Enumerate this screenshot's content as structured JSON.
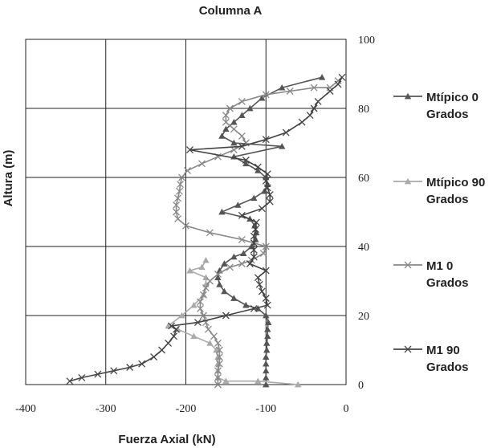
{
  "chart_data": {
    "type": "line",
    "title": "Columna A",
    "xlabel": "Fuerza Axial (kN)",
    "ylabel": "Altura (m)",
    "xlim": [
      -400,
      0
    ],
    "ylim": [
      0,
      100
    ],
    "xticks": [
      "-400",
      "-300",
      "-200",
      "-100",
      "0"
    ],
    "yticks": [
      "0",
      "20",
      "40",
      "60",
      "80",
      "100"
    ],
    "grid": "vertical and horizontal",
    "legend_position": "right",
    "series": [
      {
        "name": "Mtípico 0 Grados",
        "legend_lines": [
          "Mtípico 0",
          "Grados"
        ],
        "color": "#555555",
        "marker": "triangle",
        "points": [
          [
            -100,
            0
          ],
          [
            -100,
            2
          ],
          [
            -100,
            4
          ],
          [
            -100,
            6
          ],
          [
            -100,
            8
          ],
          [
            -99,
            10
          ],
          [
            -99,
            12
          ],
          [
            -98,
            14
          ],
          [
            -98,
            16
          ],
          [
            -97,
            18
          ],
          [
            -100,
            20
          ],
          [
            -110,
            22
          ],
          [
            -125,
            23
          ],
          [
            -140,
            25
          ],
          [
            -152,
            27
          ],
          [
            -158,
            29
          ],
          [
            -160,
            31
          ],
          [
            -158,
            33
          ],
          [
            -152,
            35
          ],
          [
            -140,
            37
          ],
          [
            -128,
            38
          ],
          [
            -118,
            40
          ],
          [
            -113,
            42
          ],
          [
            -112,
            44
          ],
          [
            -114,
            46
          ],
          [
            -120,
            48
          ],
          [
            -155,
            50
          ],
          [
            -135,
            52
          ],
          [
            -115,
            54
          ],
          [
            -102,
            56
          ],
          [
            -98,
            58
          ],
          [
            -100,
            60
          ],
          [
            -110,
            62
          ],
          [
            -125,
            64
          ],
          [
            -140,
            66
          ],
          [
            -80,
            69
          ],
          [
            -140,
            70
          ],
          [
            -155,
            72
          ],
          [
            -150,
            74
          ],
          [
            -140,
            76
          ],
          [
            -130,
            78
          ],
          [
            -120,
            80
          ],
          [
            -105,
            83
          ],
          [
            -80,
            86
          ],
          [
            -30,
            89
          ]
        ]
      },
      {
        "name": "Mtípico 90 Grados",
        "legend_lines": [
          "Mtípico 90",
          "Grados"
        ],
        "color": "#aaaaaa",
        "marker": "triangle",
        "points": [
          [
            -60,
            0
          ],
          [
            -110,
            1
          ],
          [
            -150,
            1
          ],
          [
            -160,
            2
          ],
          [
            -160,
            4
          ],
          [
            -160,
            6
          ],
          [
            -160,
            8
          ],
          [
            -162,
            10
          ],
          [
            -170,
            12
          ],
          [
            -190,
            14
          ],
          [
            -210,
            16
          ],
          [
            -222,
            17
          ],
          [
            -205,
            20
          ],
          [
            -190,
            23
          ],
          [
            -178,
            26
          ],
          [
            -175,
            29
          ],
          [
            -175,
            31
          ],
          [
            -195,
            33
          ],
          [
            -180,
            34
          ],
          [
            -175,
            36
          ]
        ]
      },
      {
        "name": "M1 0 Grados",
        "legend_lines": [
          "M1 0",
          "Grados"
        ],
        "color": "#888888",
        "marker": "x",
        "points": [
          [
            -160,
            0
          ],
          [
            -160,
            2
          ],
          [
            -160,
            4
          ],
          [
            -158,
            6
          ],
          [
            -158,
            8
          ],
          [
            -158,
            10
          ],
          [
            -160,
            12
          ],
          [
            -165,
            14
          ],
          [
            -172,
            16
          ],
          [
            -175,
            18
          ],
          [
            -178,
            20
          ],
          [
            -182,
            22
          ],
          [
            -182,
            24
          ],
          [
            -178,
            26
          ],
          [
            -175,
            28
          ],
          [
            -170,
            30
          ],
          [
            -160,
            32
          ],
          [
            -145,
            34
          ],
          [
            -130,
            35
          ],
          [
            -118,
            36
          ],
          [
            -103,
            38
          ],
          [
            -100,
            40
          ],
          [
            -130,
            42
          ],
          [
            -170,
            44
          ],
          [
            -200,
            46
          ],
          [
            -210,
            48
          ],
          [
            -212,
            50
          ],
          [
            -212,
            52
          ],
          [
            -210,
            54
          ],
          [
            -208,
            56
          ],
          [
            -207,
            58
          ],
          [
            -205,
            60
          ],
          [
            -198,
            62
          ],
          [
            -180,
            64
          ],
          [
            -160,
            66
          ],
          [
            -140,
            68
          ],
          [
            -125,
            70
          ],
          [
            -130,
            72
          ],
          [
            -140,
            74
          ],
          [
            -150,
            76
          ],
          [
            -150,
            78
          ],
          [
            -145,
            80
          ],
          [
            -130,
            82
          ],
          [
            -100,
            84
          ],
          [
            -70,
            85
          ],
          [
            -40,
            86
          ],
          [
            -20,
            86
          ],
          [
            -10,
            88
          ]
        ]
      },
      {
        "name": "M1 90 Grados",
        "legend_lines": [
          "M1 90",
          "Grados"
        ],
        "color": "#444444",
        "marker": "x",
        "points": [
          [
            -345,
            1
          ],
          [
            -330,
            2
          ],
          [
            -310,
            3
          ],
          [
            -290,
            4
          ],
          [
            -270,
            5
          ],
          [
            -255,
            6
          ],
          [
            -240,
            8
          ],
          [
            -230,
            10
          ],
          [
            -222,
            12
          ],
          [
            -215,
            14
          ],
          [
            -212,
            16
          ],
          [
            -218,
            17
          ],
          [
            -185,
            18
          ],
          [
            -150,
            20
          ],
          [
            -115,
            22
          ],
          [
            -98,
            23
          ],
          [
            -100,
            25
          ],
          [
            -105,
            27
          ],
          [
            -108,
            29
          ],
          [
            -110,
            31
          ],
          [
            -100,
            33
          ],
          [
            -120,
            35
          ],
          [
            -115,
            37
          ],
          [
            -115,
            39
          ],
          [
            -115,
            41
          ],
          [
            -115,
            43
          ],
          [
            -113,
            45
          ],
          [
            -112,
            47
          ],
          [
            -130,
            49
          ],
          [
            -105,
            51
          ],
          [
            -95,
            53
          ],
          [
            -95,
            55
          ],
          [
            -98,
            57
          ],
          [
            -100,
            59
          ],
          [
            -98,
            61
          ],
          [
            -110,
            63
          ],
          [
            -125,
            65
          ],
          [
            -195,
            68
          ],
          [
            -130,
            69
          ],
          [
            -100,
            71
          ],
          [
            -75,
            73
          ],
          [
            -55,
            76
          ],
          [
            -45,
            78
          ],
          [
            -40,
            80
          ],
          [
            -35,
            82
          ],
          [
            -20,
            85
          ],
          [
            -10,
            87
          ],
          [
            -5,
            89
          ]
        ]
      }
    ]
  }
}
